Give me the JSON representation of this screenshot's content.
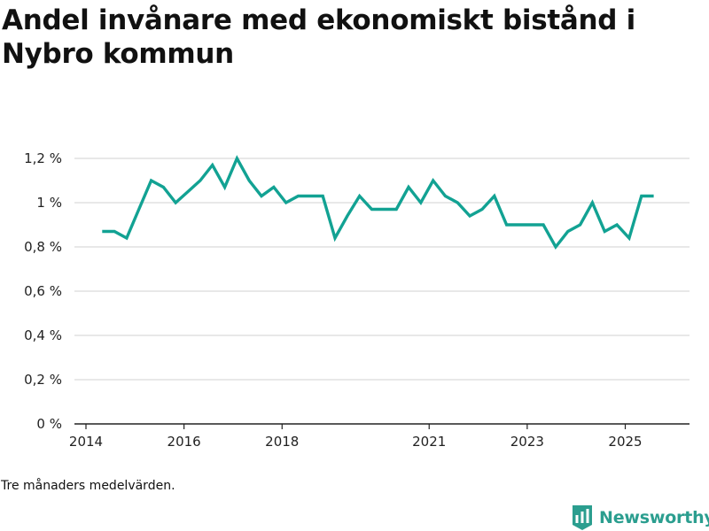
{
  "title": "Andel invånare med ekonomiskt bistånd i Nybro kommun",
  "note": "Tre månaders medelvärden.",
  "brand": {
    "name": "Newsworthy",
    "color": "#2b9e8f",
    "icon": "bar-chart-badge-icon"
  },
  "colors": {
    "line": "#12a293",
    "grid": "#d9d9d9",
    "axis": "#222222"
  },
  "chart_data": {
    "type": "line",
    "title": "Andel invånare med ekonomiskt bistånd i Nybro kommun",
    "xlabel": "",
    "ylabel": "",
    "ylim": [
      0,
      1.2
    ],
    "xlim": [
      2014.0,
      2025.75
    ],
    "grid": true,
    "y_ticks": [
      {
        "value": 0,
        "label": "0 %"
      },
      {
        "value": 0.2,
        "label": "0,2 %"
      },
      {
        "value": 0.4,
        "label": "0,4 %"
      },
      {
        "value": 0.6,
        "label": "0,6 %"
      },
      {
        "value": 0.8,
        "label": "0,8 %"
      },
      {
        "value": 1.0,
        "label": "1 %"
      },
      {
        "value": 1.2,
        "label": "1,2 %"
      }
    ],
    "x_ticks": [
      {
        "value": 2014.0,
        "label": "2014"
      },
      {
        "value": 2016.0,
        "label": "2016"
      },
      {
        "value": 2018.0,
        "label": "2018"
      },
      {
        "value": 2021.0,
        "label": "2021"
      },
      {
        "value": 2023.0,
        "label": "2023"
      },
      {
        "value": 2025.0,
        "label": "2025"
      }
    ],
    "series": [
      {
        "name": "Andel invånare med ekonomiskt bistånd",
        "x": [
          2014.33,
          2014.58,
          2014.83,
          2015.08,
          2015.33,
          2015.58,
          2015.83,
          2016.08,
          2016.33,
          2016.58,
          2016.83,
          2017.08,
          2017.33,
          2017.58,
          2017.83,
          2018.08,
          2018.33,
          2018.58,
          2018.83,
          2019.08,
          2019.33,
          2019.58,
          2019.83,
          2020.08,
          2020.33,
          2020.58,
          2020.83,
          2021.08,
          2021.33,
          2021.58,
          2021.83,
          2022.08,
          2022.33,
          2022.58,
          2022.83,
          2023.08,
          2023.33,
          2023.58,
          2023.83,
          2024.08,
          2024.33,
          2024.58,
          2024.83,
          2025.08,
          2025.33,
          2025.58
        ],
        "values": [
          0.87,
          0.87,
          0.84,
          0.97,
          1.1,
          1.07,
          1.0,
          1.05,
          1.1,
          1.17,
          1.07,
          1.2,
          1.1,
          1.03,
          1.07,
          1.0,
          1.03,
          1.03,
          1.03,
          0.84,
          0.94,
          1.03,
          0.97,
          0.97,
          0.97,
          1.07,
          1.0,
          1.1,
          1.03,
          1.0,
          0.94,
          0.97,
          1.03,
          0.9,
          0.9,
          0.9,
          0.9,
          0.8,
          0.87,
          0.9,
          1.0,
          0.87,
          0.9,
          0.84,
          1.03,
          1.03
        ]
      }
    ]
  }
}
